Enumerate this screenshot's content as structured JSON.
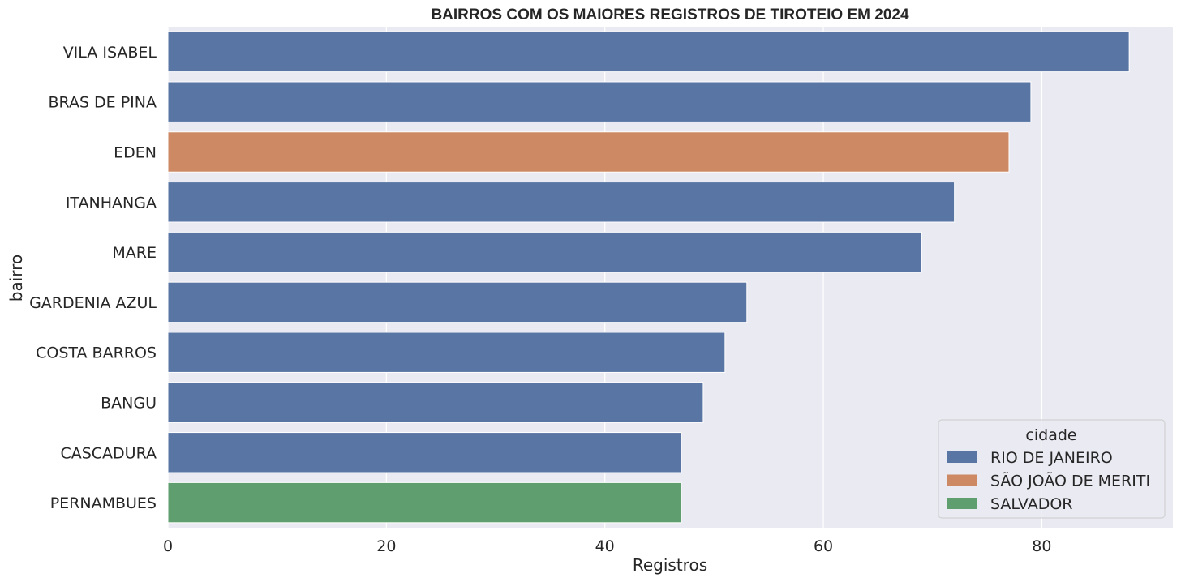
{
  "chart_data": {
    "type": "bar",
    "orientation": "horizontal",
    "title": "BAIRROS COM OS MAIORES REGISTROS DE TIROTEIO EM 2024",
    "xlabel": "Registros",
    "ylabel": "bairro",
    "xlim": [
      0,
      92
    ],
    "xticks": [
      0,
      20,
      40,
      60,
      80
    ],
    "xtick_labels": [
      "0",
      "20",
      "40",
      "60",
      "80"
    ],
    "grid": true,
    "categories": [
      "VILA ISABEL",
      "BRAS DE PINA",
      "EDEN",
      "ITANHANGA",
      "MARE",
      "GARDENIA AZUL",
      "COSTA BARROS",
      "BANGU",
      "CASCADURA",
      "PERNAMBUES"
    ],
    "values": [
      88,
      79,
      77,
      72,
      69,
      53,
      51,
      49,
      47,
      47
    ],
    "bar_city": [
      "RIO DE JANEIRO",
      "RIO DE JANEIRO",
      "SÃO JOÃO DE MERITI",
      "RIO DE JANEIRO",
      "RIO DE JANEIRO",
      "RIO DE JANEIRO",
      "RIO DE JANEIRO",
      "RIO DE JANEIRO",
      "RIO DE JANEIRO",
      "SALVADOR"
    ],
    "legend": {
      "title": "cidade",
      "placement": "bottom-right",
      "entries": [
        {
          "label": "RIO DE JANEIRO",
          "color": "#5875a4"
        },
        {
          "label": "SÃO JOÃO DE MERITI",
          "color": "#cc8963"
        },
        {
          "label": "SALVADOR",
          "color": "#5f9e6e"
        }
      ]
    },
    "colors": {
      "plot_background": "#eaeaf2",
      "grid": "#ffffff",
      "text": "#262626"
    }
  }
}
